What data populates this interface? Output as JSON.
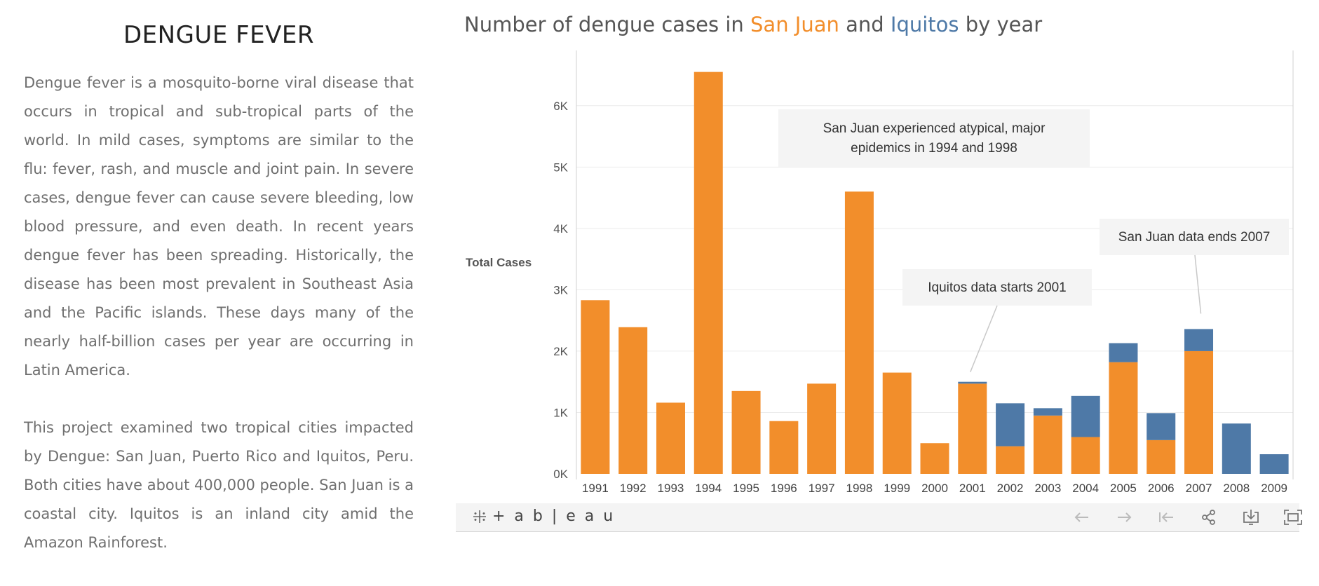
{
  "left": {
    "title": "DENGUE FEVER",
    "paragraph1": "Dengue fever is a mosquito-borne viral disease that occurs in tropical and sub-tropical parts of the world. In mild cases, symptoms are similar to the flu: fever, rash, and muscle and joint pain. In severe cases, dengue fever can cause severe bleeding, low blood pressure, and even death. In recent years dengue fever has been spreading. Historically, the disease has been most prevalent in Southeast Asia and the Pacific islands. These days many of the nearly half-billion cases per year are occurring in Latin America.",
    "paragraph2": "This project examined two tropical cities impacted by Dengue: San Juan, Puerto Rico and Iquitos, Peru. Both cities have about 400,000 people. San Juan is a coastal city. Iquitos is an inland city amid the Amazon Rainforest."
  },
  "chart_title": {
    "prefix": "Number of dengue cases in ",
    "sj": "San Juan",
    "middle": " and ",
    "iq": "Iquitos",
    "suffix": " by year"
  },
  "chart_data": {
    "type": "bar",
    "stacked": true,
    "categories": [
      "1991",
      "1992",
      "1993",
      "1994",
      "1995",
      "1996",
      "1997",
      "1998",
      "1999",
      "2000",
      "2001",
      "2002",
      "2003",
      "2004",
      "2005",
      "2006",
      "2007",
      "2008",
      "2009"
    ],
    "series": [
      {
        "name": "San Juan",
        "color": "#f28e2b",
        "values": [
          2830,
          2390,
          1160,
          6550,
          1350,
          860,
          1470,
          4600,
          1650,
          500,
          1470,
          450,
          950,
          600,
          1820,
          550,
          2000,
          0,
          0
        ]
      },
      {
        "name": "Iquitos",
        "color": "#4e79a7",
        "values": [
          0,
          0,
          0,
          0,
          0,
          0,
          0,
          0,
          0,
          0,
          30,
          700,
          120,
          670,
          310,
          440,
          360,
          820,
          320
        ]
      }
    ],
    "ylabel": "Total Cases",
    "ylim": [
      0,
      6900
    ],
    "yticks": [
      0,
      1000,
      2000,
      3000,
      4000,
      5000,
      6000
    ],
    "ytick_labels": [
      "0K",
      "1K",
      "2K",
      "3K",
      "4K",
      "5K",
      "6K"
    ],
    "grid": true,
    "annotations": [
      {
        "text": "San Juan experienced atypical, major epidemics in 1994 and 1998",
        "lines": [
          "San Juan experienced atypical, major",
          "epidemics in 1994 and 1998"
        ]
      },
      {
        "text": "Iquitos data starts 2001",
        "lines": [
          "Iquitos data starts 2001"
        ],
        "target_year": "2001"
      },
      {
        "text": "San Juan data ends 2007",
        "lines": [
          "San Juan data ends 2007"
        ],
        "target_year": "2007"
      }
    ]
  },
  "toolbar": {
    "logo_text": "+ a b | e a u",
    "buttons": [
      "back-icon",
      "forward-icon",
      "reset-icon",
      "share-icon",
      "download-icon",
      "fullscreen-icon"
    ]
  }
}
